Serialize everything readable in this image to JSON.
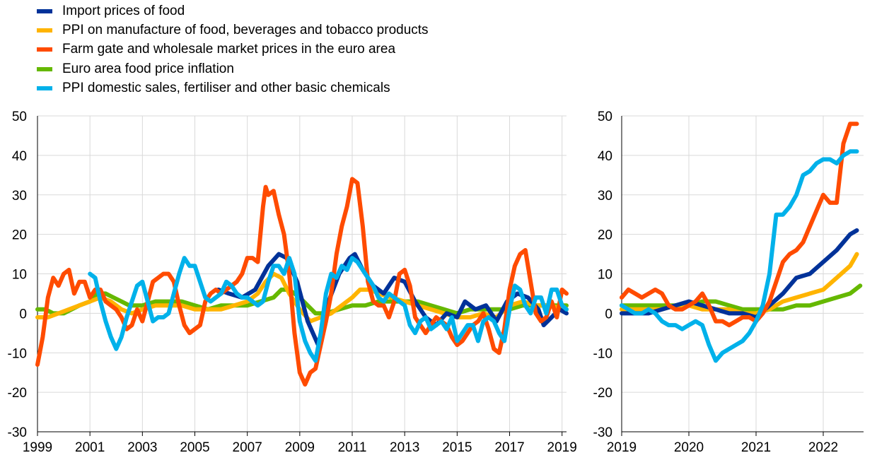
{
  "legend": [
    {
      "key": "import",
      "label": "Import prices of food",
      "color": "#003299"
    },
    {
      "key": "ppi_food",
      "label": "PPI on manufacture of food, beverages and tobacco products",
      "color": "#FFB400"
    },
    {
      "key": "farm",
      "label": "Farm gate and wholesale market prices in the euro area",
      "color": "#FF4B00"
    },
    {
      "key": "hicp_food",
      "label": "Euro area food price inflation",
      "color": "#65B800"
    },
    {
      "key": "fert",
      "label": "PPI domestic sales, fertiliser and other basic chemicals",
      "color": "#00B1EA"
    }
  ],
  "chart_data": [
    {
      "type": "line",
      "x_ticks": [
        "1999",
        "2001",
        "2003",
        "2005",
        "2007",
        "2009",
        "2011",
        "2013",
        "2015",
        "2017",
        "2019"
      ],
      "y_ticks": [
        "50",
        "40",
        "30",
        "20",
        "10",
        "0",
        "-10",
        "-20",
        "-30"
      ],
      "xlim": [
        1999.0,
        2019.17
      ],
      "ylim": [
        -30,
        50
      ],
      "grid": "horizontal and vertical",
      "series": [
        {
          "name": "Import prices of food",
          "color": "#003299",
          "x": [
            2005.9,
            2006.3,
            2006.8,
            2007.3,
            2007.8,
            2008.2,
            2008.5,
            2008.9,
            2009.3,
            2009.7,
            2010.1,
            2010.5,
            2010.9,
            2011.1,
            2011.4,
            2011.8,
            2012.2,
            2012.6,
            2013.0,
            2013.4,
            2013.8,
            2014.2,
            2014.6,
            2015.0,
            2015.3,
            2015.7,
            2016.1,
            2016.5,
            2016.9,
            2017.3,
            2017.7,
            2018.1,
            2018.3,
            2018.6,
            2018.9,
            2019.17
          ],
          "y": [
            6,
            5,
            4,
            6,
            12,
            15,
            14,
            8,
            -2,
            -8,
            3,
            10,
            14,
            15,
            11,
            7,
            5,
            9,
            8,
            3,
            -1,
            -3,
            0,
            -1,
            3,
            1,
            2,
            -2,
            3,
            5,
            4,
            1,
            -3,
            -1,
            1,
            0
          ]
        },
        {
          "name": "PPI on manufacture of food, beverages and tobacco products",
          "color": "#FFB400",
          "x": [
            1999.0,
            1999.4,
            1999.8,
            2000.2,
            2000.6,
            2001.0,
            2001.4,
            2001.8,
            2002.2,
            2002.6,
            2003.0,
            2003.5,
            2004.0,
            2004.5,
            2005.0,
            2005.5,
            2006.0,
            2006.5,
            2007.0,
            2007.4,
            2007.7,
            2008.0,
            2008.3,
            2008.6,
            2009.0,
            2009.4,
            2009.8,
            2010.2,
            2010.6,
            2011.0,
            2011.3,
            2011.7,
            2012.0,
            2012.5,
            2013.0,
            2013.5,
            2014.0,
            2014.5,
            2015.0,
            2015.5,
            2016.0,
            2016.5,
            2017.0,
            2017.5,
            2018.0,
            2018.5,
            2019.17
          ],
          "y": [
            -1,
            -1,
            0,
            1,
            2,
            3,
            4,
            3,
            1,
            0,
            1,
            2,
            2,
            2,
            1,
            1,
            1,
            2,
            3,
            5,
            8,
            10,
            9,
            5,
            1,
            -2,
            -1,
            0,
            2,
            4,
            6,
            6,
            5,
            4,
            3,
            2,
            1,
            0,
            -1,
            -1,
            0,
            -1,
            2,
            3,
            2,
            2,
            1
          ]
        },
        {
          "name": "Farm gate and wholesale market prices in the euro area",
          "color": "#FF4B00",
          "x": [
            1999.0,
            1999.2,
            1999.4,
            1999.6,
            1999.8,
            2000.0,
            2000.2,
            2000.4,
            2000.6,
            2000.8,
            2001.0,
            2001.2,
            2001.4,
            2001.6,
            2001.8,
            2002.0,
            2002.2,
            2002.4,
            2002.6,
            2002.8,
            2003.0,
            2003.2,
            2003.4,
            2003.6,
            2003.8,
            2004.0,
            2004.2,
            2004.4,
            2004.6,
            2004.8,
            2005.0,
            2005.2,
            2005.4,
            2005.6,
            2005.8,
            2006.0,
            2006.2,
            2006.4,
            2006.6,
            2006.8,
            2007.0,
            2007.2,
            2007.4,
            2007.6,
            2007.7,
            2007.8,
            2008.0,
            2008.2,
            2008.4,
            2008.6,
            2008.8,
            2009.0,
            2009.2,
            2009.4,
            2009.6,
            2009.8,
            2010.0,
            2010.2,
            2010.4,
            2010.6,
            2010.8,
            2011.0,
            2011.2,
            2011.4,
            2011.6,
            2011.8,
            2012.0,
            2012.2,
            2012.4,
            2012.6,
            2012.8,
            2013.0,
            2013.2,
            2013.4,
            2013.6,
            2013.8,
            2014.0,
            2014.2,
            2014.4,
            2014.6,
            2014.8,
            2015.0,
            2015.2,
            2015.4,
            2015.6,
            2015.8,
            2016.0,
            2016.2,
            2016.4,
            2016.6,
            2016.8,
            2017.0,
            2017.2,
            2017.4,
            2017.6,
            2017.8,
            2018.0,
            2018.2,
            2018.4,
            2018.6,
            2018.8,
            2019.0,
            2019.17
          ],
          "y": [
            -13,
            -6,
            4,
            9,
            7,
            10,
            11,
            5,
            8,
            8,
            4,
            6,
            6,
            3,
            2,
            1,
            -1,
            -4,
            -3,
            1,
            -2,
            3,
            8,
            9,
            10,
            10,
            8,
            2,
            -3,
            -5,
            -4,
            -3,
            3,
            5,
            6,
            5,
            6,
            7,
            8,
            10,
            14,
            14,
            13,
            27,
            32,
            30,
            31,
            25,
            20,
            10,
            -5,
            -15,
            -18,
            -15,
            -14,
            -8,
            -2,
            5,
            15,
            22,
            27,
            34,
            33,
            22,
            8,
            3,
            2,
            2,
            -1,
            3,
            10,
            11,
            7,
            -1,
            -3,
            -5,
            -3,
            -1,
            -2,
            -3,
            -6,
            -8,
            -7,
            -5,
            -3,
            -2,
            0,
            -4,
            -9,
            -10,
            -4,
            6,
            12,
            15,
            16,
            8,
            0,
            -2,
            -1,
            3,
            -1,
            6,
            5
          ]
        },
        {
          "name": "Euro area food price inflation",
          "color": "#65B800",
          "x": [
            1999.0,
            1999.3,
            1999.6,
            2000.0,
            2000.3,
            2000.6,
            2001.0,
            2001.3,
            2001.6,
            2001.9,
            2002.2,
            2002.5,
            2003.0,
            2003.5,
            2004.0,
            2004.5,
            2005.0,
            2005.5,
            2006.0,
            2006.5,
            2007.0,
            2007.5,
            2008.0,
            2008.3,
            2008.6,
            2009.0,
            2009.3,
            2009.6,
            2010.0,
            2010.5,
            2011.0,
            2011.5,
            2012.0,
            2012.5,
            2013.0,
            2013.5,
            2014.0,
            2014.5,
            2015.0,
            2015.5,
            2016.0,
            2016.5,
            2017.0,
            2017.5,
            2018.0,
            2018.5,
            2019.17
          ],
          "y": [
            1,
            1,
            0,
            0,
            1,
            2,
            3,
            5,
            5,
            4,
            3,
            2,
            2,
            3,
            3,
            3,
            2,
            1,
            2,
            2,
            2,
            3,
            4,
            6,
            6,
            4,
            2,
            0,
            0,
            1,
            2,
            2,
            3,
            3,
            3,
            3,
            2,
            1,
            0,
            1,
            1,
            1,
            1,
            2,
            2,
            2,
            2
          ]
        },
        {
          "name": "PPI domestic sales, fertiliser and other basic chemicals",
          "color": "#00B1EA",
          "x": [
            2001.0,
            2001.2,
            2001.4,
            2001.6,
            2001.8,
            2002.0,
            2002.2,
            2002.4,
            2002.6,
            2002.8,
            2003.0,
            2003.2,
            2003.4,
            2003.6,
            2003.8,
            2004.0,
            2004.2,
            2004.4,
            2004.6,
            2004.8,
            2005.0,
            2005.2,
            2005.4,
            2005.6,
            2005.8,
            2006.0,
            2006.2,
            2006.4,
            2006.6,
            2006.8,
            2007.0,
            2007.2,
            2007.4,
            2007.6,
            2007.8,
            2008.0,
            2008.2,
            2008.4,
            2008.6,
            2008.8,
            2009.0,
            2009.2,
            2009.4,
            2009.6,
            2009.8,
            2010.0,
            2010.2,
            2010.4,
            2010.6,
            2010.8,
            2011.0,
            2011.2,
            2011.4,
            2011.6,
            2011.8,
            2012.0,
            2012.2,
            2012.4,
            2012.6,
            2012.8,
            2013.0,
            2013.2,
            2013.4,
            2013.6,
            2013.8,
            2014.0,
            2014.2,
            2014.4,
            2014.6,
            2014.8,
            2015.0,
            2015.2,
            2015.4,
            2015.6,
            2015.8,
            2016.0,
            2016.2,
            2016.4,
            2016.6,
            2016.8,
            2017.0,
            2017.2,
            2017.4,
            2017.6,
            2017.8,
            2018.0,
            2018.2,
            2018.4,
            2018.6,
            2018.8,
            2019.0,
            2019.17
          ],
          "y": [
            10,
            9,
            3,
            -2,
            -6,
            -9,
            -6,
            -1,
            3,
            7,
            8,
            3,
            -2,
            -1,
            -1,
            0,
            5,
            10,
            14,
            12,
            12,
            8,
            4,
            3,
            4,
            5,
            8,
            7,
            5,
            4,
            4,
            3,
            2,
            3,
            8,
            12,
            12,
            10,
            14,
            10,
            -2,
            -7,
            -10,
            -12,
            -5,
            5,
            10,
            9,
            12,
            11,
            14,
            13,
            11,
            9,
            7,
            4,
            3,
            5,
            4,
            3,
            2,
            -3,
            -5,
            -2,
            -1,
            -4,
            -3,
            -2,
            -4,
            -1,
            -7,
            -5,
            -3,
            -3,
            -7,
            -2,
            -1,
            -2,
            -5,
            -7,
            1,
            7,
            6,
            2,
            0,
            4,
            4,
            0,
            6,
            6,
            2,
            1
          ]
        }
      ]
    },
    {
      "type": "line",
      "x_ticks": [
        "2019",
        "2020",
        "2021",
        "2022"
      ],
      "y_ticks": [
        "50",
        "40",
        "30",
        "20",
        "10",
        "0",
        "-10",
        "-20",
        "-30"
      ],
      "xlim": [
        2019.0,
        2022.6
      ],
      "ylim": [
        -30,
        50
      ],
      "grid": "horizontal and vertical",
      "series": [
        {
          "name": "Import prices of food",
          "color": "#003299",
          "x": [
            2019.0,
            2019.2,
            2019.4,
            2019.6,
            2019.8,
            2020.0,
            2020.2,
            2020.4,
            2020.6,
            2020.8,
            2021.0,
            2021.2,
            2021.4,
            2021.6,
            2021.8,
            2022.0,
            2022.2,
            2022.4,
            2022.5
          ],
          "y": [
            0,
            0,
            0,
            1,
            2,
            3,
            2,
            1,
            0,
            0,
            -1,
            2,
            5,
            9,
            10,
            13,
            16,
            20,
            21
          ]
        },
        {
          "name": "PPI on manufacture of food, beverages and tobacco products",
          "color": "#FFB400",
          "x": [
            2019.0,
            2019.2,
            2019.4,
            2019.6,
            2019.8,
            2020.0,
            2020.2,
            2020.4,
            2020.6,
            2020.8,
            2021.0,
            2021.2,
            2021.4,
            2021.6,
            2021.8,
            2022.0,
            2022.2,
            2022.4,
            2022.5
          ],
          "y": [
            1,
            1,
            1,
            1,
            2,
            2,
            1,
            1,
            1,
            0,
            0,
            1,
            3,
            4,
            5,
            6,
            9,
            12,
            15
          ]
        },
        {
          "name": "Farm gate and wholesale market prices in the euro area",
          "color": "#FF4B00",
          "x": [
            2019.0,
            2019.1,
            2019.2,
            2019.3,
            2019.4,
            2019.5,
            2019.6,
            2019.7,
            2019.8,
            2019.9,
            2020.0,
            2020.1,
            2020.2,
            2020.3,
            2020.4,
            2020.5,
            2020.6,
            2020.7,
            2020.8,
            2020.9,
            2021.0,
            2021.1,
            2021.2,
            2021.3,
            2021.4,
            2021.5,
            2021.6,
            2021.7,
            2021.8,
            2021.9,
            2022.0,
            2022.1,
            2022.2,
            2022.3,
            2022.4,
            2022.5
          ],
          "y": [
            4,
            6,
            5,
            4,
            5,
            6,
            5,
            2,
            1,
            1,
            2,
            3,
            5,
            2,
            -2,
            -2,
            -3,
            -2,
            -1,
            -1,
            -2,
            0,
            3,
            8,
            13,
            15,
            16,
            18,
            22,
            26,
            30,
            28,
            28,
            43,
            48,
            48
          ]
        },
        {
          "name": "Euro area food price inflation",
          "color": "#65B800",
          "x": [
            2019.0,
            2019.2,
            2019.4,
            2019.6,
            2019.8,
            2020.0,
            2020.2,
            2020.4,
            2020.6,
            2020.8,
            2021.0,
            2021.2,
            2021.4,
            2021.6,
            2021.8,
            2022.0,
            2022.2,
            2022.4,
            2022.55
          ],
          "y": [
            2,
            2,
            2,
            2,
            2,
            2,
            3,
            3,
            2,
            1,
            1,
            1,
            1,
            2,
            2,
            3,
            4,
            5,
            7
          ]
        },
        {
          "name": "PPI domestic sales, fertiliser and other basic chemicals",
          "color": "#00B1EA",
          "x": [
            2019.0,
            2019.1,
            2019.2,
            2019.3,
            2019.4,
            2019.5,
            2019.6,
            2019.7,
            2019.8,
            2019.9,
            2020.0,
            2020.1,
            2020.2,
            2020.3,
            2020.4,
            2020.5,
            2020.6,
            2020.7,
            2020.8,
            2020.9,
            2021.0,
            2021.1,
            2021.2,
            2021.3,
            2021.4,
            2021.5,
            2021.6,
            2021.7,
            2021.8,
            2021.9,
            2022.0,
            2022.1,
            2022.2,
            2022.3,
            2022.4,
            2022.5
          ],
          "y": [
            2,
            1,
            0,
            0,
            1,
            0,
            -2,
            -3,
            -3,
            -4,
            -3,
            -2,
            -3,
            -8,
            -12,
            -10,
            -9,
            -8,
            -7,
            -5,
            -2,
            2,
            10,
            25,
            25,
            27,
            30,
            35,
            36,
            38,
            39,
            39,
            38,
            40,
            41,
            41
          ]
        }
      ]
    }
  ]
}
